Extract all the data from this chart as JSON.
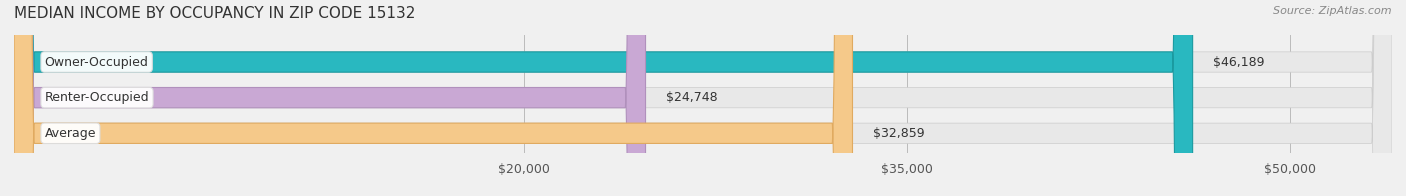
{
  "title": "MEDIAN INCOME BY OCCUPANCY IN ZIP CODE 15132",
  "source": "Source: ZipAtlas.com",
  "categories": [
    "Owner-Occupied",
    "Renter-Occupied",
    "Average"
  ],
  "values": [
    46189,
    24748,
    32859
  ],
  "bar_colors": [
    "#29b8c0",
    "#c9a8d4",
    "#f5c98a"
  ],
  "bar_edge_colors": [
    "#1a9aa0",
    "#b090bc",
    "#e0aa60"
  ],
  "value_labels": [
    "$46,189",
    "$24,748",
    "$32,859"
  ],
  "x_ticks": [
    20000,
    35000,
    50000
  ],
  "x_tick_labels": [
    "$20,000",
    "$35,000",
    "$50,000"
  ],
  "xlim": [
    0,
    54000
  ],
  "background_color": "#f0f0f0",
  "bar_background": "#e8e8e8",
  "title_fontsize": 11,
  "source_fontsize": 8,
  "label_fontsize": 9,
  "tick_fontsize": 9
}
